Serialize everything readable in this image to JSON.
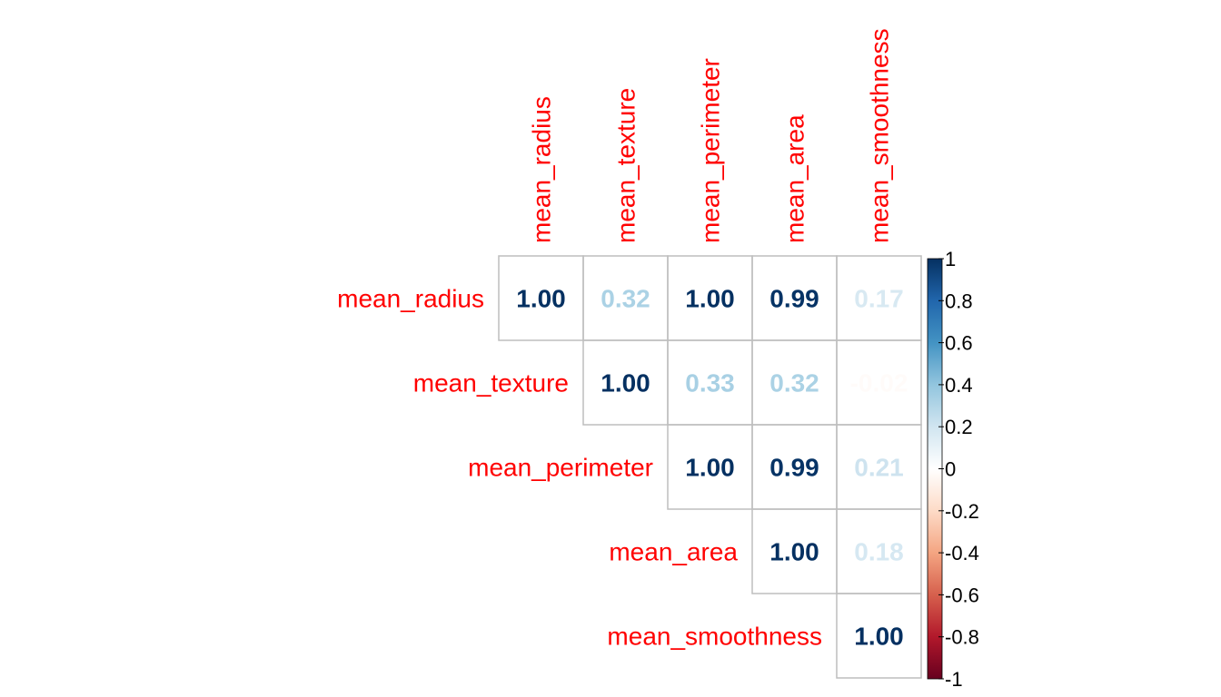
{
  "chart_data": {
    "type": "heatmap",
    "title": "",
    "variables": [
      "mean_radius",
      "mean_texture",
      "mean_perimeter",
      "mean_area",
      "mean_smoothness"
    ],
    "matrix": [
      [
        1.0,
        0.32,
        1.0,
        0.99,
        0.17
      ],
      [
        0.32,
        1.0,
        0.33,
        0.32,
        -0.02
      ],
      [
        1.0,
        0.33,
        1.0,
        0.99,
        0.21
      ],
      [
        0.99,
        0.32,
        0.99,
        1.0,
        0.18
      ],
      [
        0.17,
        -0.02,
        0.21,
        0.18,
        1.0
      ]
    ],
    "display": "upper",
    "number_format": "0.00",
    "label_color": "#ff0000",
    "grid_color": "#bebebe",
    "colorbar": {
      "range": [
        -1,
        1
      ],
      "ticks": [
        "1",
        "0.8",
        "0.6",
        "0.4",
        "0.2",
        "0",
        "-0.2",
        "-0.4",
        "-0.6",
        "-0.8",
        "-1"
      ],
      "colors": [
        "#67001f",
        "#b2182b",
        "#d6604d",
        "#f4a582",
        "#fddbc7",
        "#ffffff",
        "#d1e5f0",
        "#92c5de",
        "#4393c3",
        "#2166ac",
        "#053061"
      ],
      "placement": "right"
    }
  }
}
